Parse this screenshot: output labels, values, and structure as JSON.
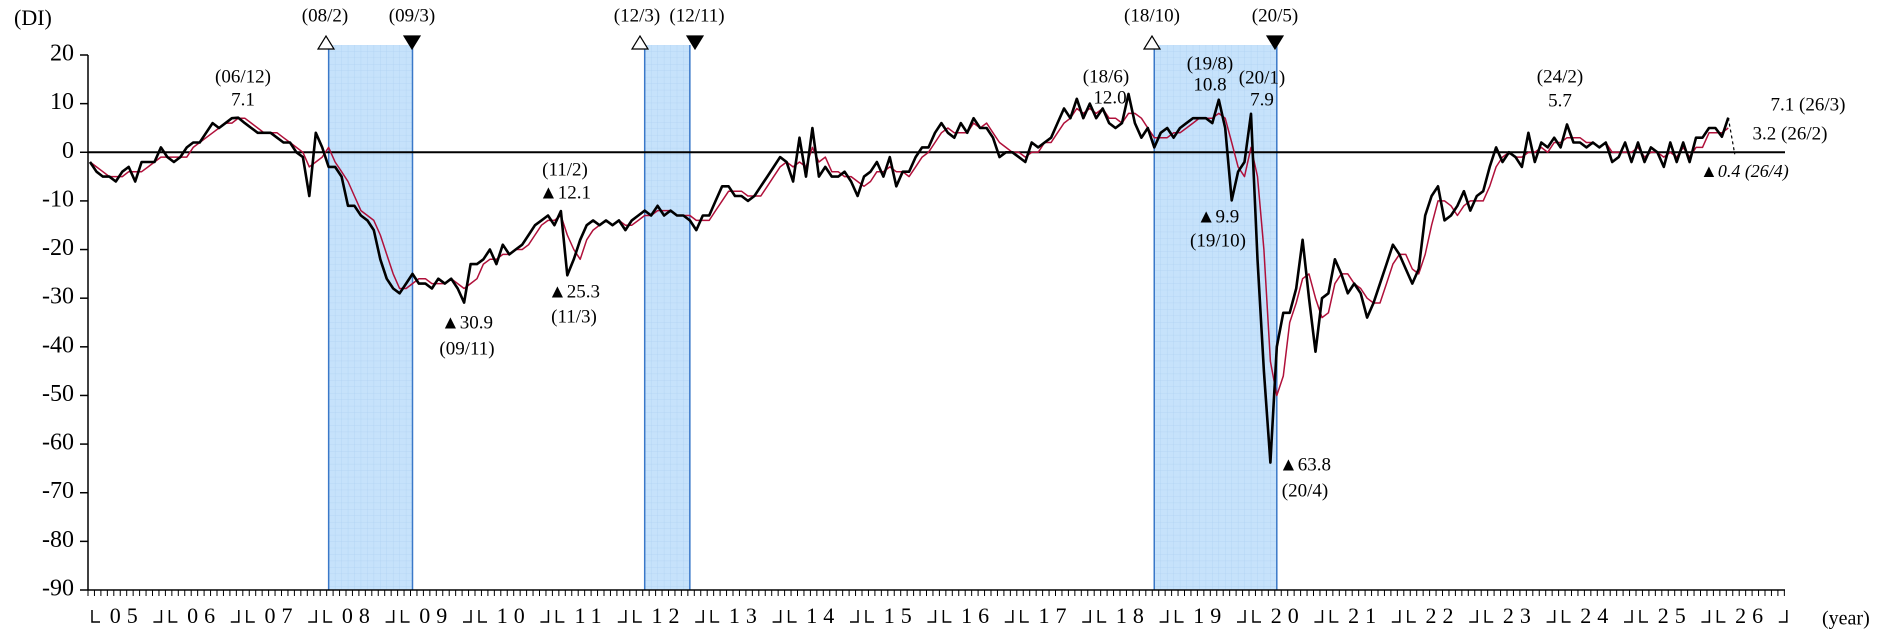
{
  "chart_data": {
    "type": "line",
    "y_label": "(DI)",
    "x_unit": "(year)",
    "ylim": [
      -90,
      20
    ],
    "yticks": [
      20,
      10,
      0,
      -10,
      -20,
      -30,
      -40,
      -50,
      -60,
      -70,
      -80,
      -90
    ],
    "year_labels": [
      "05",
      "06",
      "07",
      "08",
      "09",
      "10",
      "11",
      "12",
      "13",
      "14",
      "15",
      "16",
      "17",
      "18",
      "19",
      "20",
      "21",
      "22",
      "23",
      "24",
      "25",
      "26"
    ],
    "series": [
      {
        "color": "#000000",
        "values": [
          -2,
          -4,
          -5,
          -5,
          -6,
          -4,
          -3,
          -6,
          -2,
          -2,
          -2,
          1,
          -1,
          -2,
          -1,
          1,
          2,
          2,
          4,
          6,
          5,
          6,
          7,
          7.1,
          6,
          5,
          4,
          4,
          4,
          3,
          2,
          2,
          0,
          -1,
          -9,
          4,
          1,
          -3,
          -3,
          -5,
          -11,
          -11,
          -13,
          -14,
          -16,
          -22,
          -26,
          -28,
          -29,
          -27,
          -25,
          -27,
          -27,
          -28,
          -26,
          -27,
          -26,
          -28,
          -30.9,
          -23,
          -23,
          -22,
          -20,
          -23,
          -19,
          -21,
          -20,
          -19,
          -17,
          -15,
          -14,
          -13,
          -15,
          -12.1,
          -25.3,
          -22,
          -18,
          -15,
          -14,
          -15,
          -14,
          -15,
          -14,
          -16,
          -14,
          -13,
          -12,
          -13,
          -11,
          -13,
          -12,
          -13,
          -13,
          -14,
          -16,
          -13,
          -13,
          -10,
          -7,
          -7,
          -9,
          -9,
          -10,
          -9,
          -7,
          -5,
          -3,
          -1,
          -2,
          -6,
          3,
          -5,
          5,
          -5,
          -3,
          -5,
          -5,
          -4,
          -6,
          -9,
          -5,
          -4,
          -2,
          -5,
          -1,
          -7,
          -4,
          -4,
          -1,
          1,
          1,
          4,
          6,
          4,
          3,
          6,
          4,
          7,
          5,
          5,
          3,
          -1,
          0,
          0,
          -1,
          -2,
          2,
          1,
          2,
          3,
          6,
          9,
          7,
          11,
          7,
          10,
          7,
          9,
          6,
          5,
          6,
          12.0,
          6,
          3,
          5,
          1,
          4,
          5,
          3,
          5,
          6,
          7,
          7,
          7,
          6,
          10.8,
          5,
          -9.9,
          -4,
          -2,
          7.9,
          -22,
          -45,
          -63.8,
          -40,
          -33,
          -33,
          -28,
          -18,
          -30,
          -41,
          -30,
          -29,
          -22,
          -25,
          -29,
          -27,
          -29,
          -34,
          -31,
          -27,
          -23,
          -19,
          -21,
          -24,
          -27,
          -24,
          -13,
          -9,
          -7,
          -14,
          -13,
          -11,
          -8,
          -12,
          -9,
          -8,
          -3,
          1,
          -2,
          0,
          -1,
          -3,
          4,
          -2,
          2,
          1,
          3,
          1,
          5.7,
          2,
          2,
          1,
          2,
          1,
          2,
          -2,
          -1,
          2,
          -2,
          2,
          -2,
          1,
          0,
          -3,
          2,
          -2,
          2,
          -2,
          3,
          3,
          5,
          5,
          3.2,
          7.1
        ]
      },
      {
        "color": "#b0103a",
        "values": [
          -2,
          -3,
          -4,
          -5,
          -5,
          -5,
          -4,
          -4,
          -4,
          -3,
          -2,
          -1,
          -1,
          -1,
          -1,
          -1,
          1,
          2,
          3,
          4,
          5,
          6,
          6,
          7,
          7,
          6,
          5,
          4,
          4,
          4,
          3,
          2,
          1,
          0,
          -3,
          -2,
          -1,
          1,
          -2,
          -4,
          -6,
          -9,
          -12,
          -13,
          -14,
          -17,
          -21,
          -25,
          -28,
          -28,
          -27,
          -26,
          -26,
          -27,
          -27,
          -27,
          -26,
          -27,
          -28,
          -27,
          -26,
          -23,
          -22,
          -22,
          -21,
          -21,
          -20,
          -20,
          -19,
          -17,
          -15,
          -14,
          -14,
          -13,
          -17,
          -20,
          -22,
          -18,
          -16,
          -15,
          -14,
          -15,
          -14,
          -15,
          -15,
          -14,
          -13,
          -13,
          -12,
          -12,
          -12,
          -13,
          -13,
          -13,
          -14,
          -14,
          -14,
          -12,
          -10,
          -8,
          -8,
          -8,
          -9,
          -9,
          -9,
          -7,
          -5,
          -3,
          -2,
          -3,
          -2,
          -3,
          1,
          -2,
          -1,
          -4,
          -4,
          -5,
          -5,
          -6,
          -7,
          -6,
          -4,
          -4,
          -3,
          -4,
          -4,
          -5,
          -3,
          -1,
          0,
          2,
          4,
          5,
          4,
          4,
          4,
          6,
          5,
          6,
          4,
          2,
          1,
          0,
          0,
          -1,
          0,
          0,
          2,
          2,
          4,
          6,
          7,
          9,
          8,
          9,
          8,
          9,
          7,
          7,
          6,
          8,
          8,
          7,
          5,
          3,
          3,
          3,
          4,
          4,
          5,
          6,
          7,
          7,
          7,
          8,
          7,
          2,
          -3,
          -5,
          1,
          -5,
          -20,
          -43,
          -50,
          -46,
          -35,
          -31,
          -26,
          -25,
          -30,
          -34,
          -33,
          -27,
          -25,
          -25,
          -27,
          -28,
          -30,
          -31,
          -31,
          -27,
          -23,
          -21,
          -21,
          -24,
          -25,
          -21,
          -15,
          -10,
          -10,
          -11,
          -13,
          -11,
          -10,
          -10,
          -10,
          -7,
          -3,
          -1,
          0,
          -1,
          -1,
          0,
          0,
          1,
          0,
          2,
          2,
          3,
          3,
          3,
          2,
          2,
          1,
          2,
          0,
          0,
          0,
          0,
          1,
          -1,
          0,
          0,
          -1,
          0,
          -1,
          1,
          -1,
          1,
          1,
          4,
          4,
          4,
          5
        ]
      }
    ],
    "outlook": {
      "value": -0.4,
      "label": "▲0.4 (26/4)"
    },
    "annotations": [
      "(08/2)",
      "(09/3)",
      "(12/3)",
      "(12/11)",
      "(18/10)",
      "(20/5)",
      "(06/12)",
      "7.1",
      "(11/2)",
      "▲12.1",
      "▲25.3",
      "(11/3)",
      "▲30.9",
      "(09/11)",
      "(18/6)",
      "12.0",
      "(19/8)",
      "10.8",
      "(20/1)",
      "7.9",
      "▲9.9",
      "(19/10)",
      "▲63.8",
      "(20/4)",
      "(24/2)",
      "5.7",
      "7.1 (26/3)",
      "3.2 (26/2)"
    ]
  }
}
